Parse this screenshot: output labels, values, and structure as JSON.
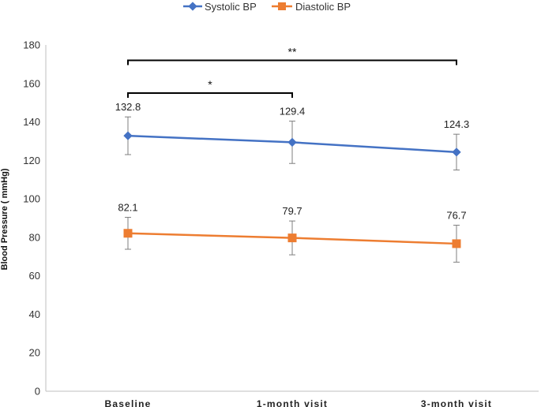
{
  "chart_data": {
    "type": "line",
    "title": "",
    "xlabel": "",
    "ylabel": "Blood Pressure ( mmHg)",
    "ylim": [
      0,
      180
    ],
    "yticks": [
      0,
      20,
      40,
      60,
      80,
      100,
      120,
      140,
      160,
      180
    ],
    "categories": [
      "Baseline",
      "1-month visit",
      "3-month visit"
    ],
    "legend_position": "top-center",
    "series": [
      {
        "name": "Systolic BP",
        "color": "#4472C4",
        "marker": "diamond",
        "values": [
          132.8,
          129.4,
          124.3
        ],
        "labels": [
          "132.8",
          "129.4",
          "124.3"
        ],
        "error": [
          9.8,
          11.0,
          9.3
        ]
      },
      {
        "name": "Diastolic BP",
        "color": "#ED7D31",
        "marker": "square",
        "values": [
          82.1,
          79.7,
          76.7
        ],
        "labels": [
          "82.1",
          "79.7",
          "76.7"
        ],
        "error": [
          8.3,
          8.8,
          9.6
        ]
      }
    ],
    "significance": [
      {
        "label": "*",
        "from": 0,
        "to": 1
      },
      {
        "label": "**",
        "from": 0,
        "to": 2
      }
    ]
  }
}
